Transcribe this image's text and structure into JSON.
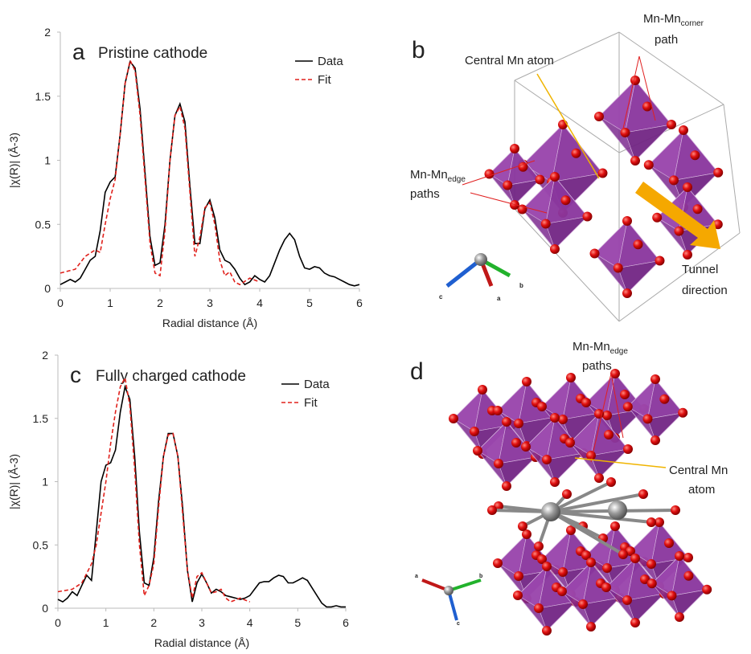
{
  "chart_data": [
    {
      "type": "line",
      "panel_label": "a",
      "title": "Pristine cathode",
      "xlabel": "Radial distance (Å)",
      "ylabel": "|χ(R)| (Å-3)",
      "xlim": [
        0,
        6
      ],
      "ylim": [
        0,
        2
      ],
      "xticks": [
        0,
        1,
        2,
        3,
        4,
        5,
        6
      ],
      "yticks": [
        0,
        0.5,
        1,
        1.5,
        2
      ],
      "grid": false,
      "legend": "upper right",
      "series": [
        {
          "name": "Data",
          "color": "#000000",
          "dash": false,
          "x": [
            0,
            0.1,
            0.2,
            0.3,
            0.4,
            0.5,
            0.6,
            0.7,
            0.8,
            0.9,
            1.0,
            1.1,
            1.2,
            1.3,
            1.4,
            1.5,
            1.6,
            1.7,
            1.8,
            1.9,
            2.0,
            2.1,
            2.2,
            2.3,
            2.4,
            2.5,
            2.6,
            2.7,
            2.8,
            2.9,
            3.0,
            3.1,
            3.2,
            3.3,
            3.4,
            3.5,
            3.6,
            3.7,
            3.8,
            3.9,
            4.0,
            4.1,
            4.2,
            4.3,
            4.4,
            4.5,
            4.6,
            4.7,
            4.8,
            4.9,
            5.0,
            5.1,
            5.2,
            5.3,
            5.4,
            5.5,
            5.6,
            5.7,
            5.8,
            5.9,
            6.0
          ],
          "values": [
            0.03,
            0.05,
            0.07,
            0.05,
            0.08,
            0.15,
            0.22,
            0.25,
            0.45,
            0.75,
            0.83,
            0.87,
            1.2,
            1.6,
            1.77,
            1.72,
            1.4,
            0.9,
            0.4,
            0.18,
            0.2,
            0.5,
            1.0,
            1.35,
            1.44,
            1.3,
            0.8,
            0.35,
            0.35,
            0.62,
            0.69,
            0.55,
            0.3,
            0.22,
            0.2,
            0.15,
            0.08,
            0.03,
            0.05,
            0.1,
            0.07,
            0.05,
            0.1,
            0.2,
            0.3,
            0.38,
            0.43,
            0.38,
            0.25,
            0.16,
            0.15,
            0.17,
            0.16,
            0.12,
            0.1,
            0.09,
            0.07,
            0.05,
            0.03,
            0.02,
            0.03
          ]
        },
        {
          "name": "Fit",
          "color": "#e0201b",
          "dash": true,
          "x": [
            0,
            0.3,
            0.5,
            0.7,
            0.8,
            0.9,
            1.0,
            1.1,
            1.2,
            1.3,
            1.4,
            1.5,
            1.6,
            1.7,
            1.8,
            1.9,
            2.0,
            2.1,
            2.2,
            2.3,
            2.4,
            2.5,
            2.6,
            2.7,
            2.8,
            2.9,
            3.0,
            3.1,
            3.2,
            3.3,
            3.4,
            3.5,
            3.6,
            3.8,
            4.0
          ],
          "values": [
            0.12,
            0.15,
            0.25,
            0.3,
            0.28,
            0.5,
            0.7,
            0.85,
            1.2,
            1.6,
            1.78,
            1.7,
            1.35,
            0.85,
            0.35,
            0.12,
            0.1,
            0.45,
            1.0,
            1.35,
            1.42,
            1.25,
            0.75,
            0.25,
            0.4,
            0.63,
            0.67,
            0.5,
            0.22,
            0.1,
            0.13,
            0.05,
            0.03,
            0.08,
            0.05
          ]
        }
      ]
    },
    {
      "type": "line",
      "panel_label": "c",
      "title": "Fully charged cathode",
      "xlabel": "Radial distance (Å)",
      "ylabel": "|χ(R)| (Å-3)",
      "xlim": [
        0,
        6
      ],
      "ylim": [
        0,
        2
      ],
      "xticks": [
        0,
        1,
        2,
        3,
        4,
        5,
        6
      ],
      "yticks": [
        0,
        0.5,
        1,
        1.5,
        2
      ],
      "grid": false,
      "legend": "upper right",
      "series": [
        {
          "name": "Data",
          "color": "#000000",
          "dash": false,
          "x": [
            0,
            0.1,
            0.2,
            0.3,
            0.4,
            0.5,
            0.6,
            0.7,
            0.8,
            0.9,
            1.0,
            1.1,
            1.2,
            1.3,
            1.4,
            1.5,
            1.6,
            1.7,
            1.8,
            1.9,
            2.0,
            2.1,
            2.2,
            2.3,
            2.4,
            2.5,
            2.6,
            2.7,
            2.8,
            2.9,
            3.0,
            3.1,
            3.2,
            3.3,
            3.4,
            3.5,
            3.6,
            3.7,
            3.8,
            3.9,
            4.0,
            4.1,
            4.2,
            4.3,
            4.4,
            4.5,
            4.6,
            4.7,
            4.8,
            4.9,
            5.0,
            5.1,
            5.2,
            5.3,
            5.4,
            5.5,
            5.6,
            5.7,
            5.8,
            5.9,
            6.0
          ],
          "values": [
            0.07,
            0.05,
            0.08,
            0.13,
            0.1,
            0.18,
            0.26,
            0.22,
            0.6,
            1.0,
            1.13,
            1.15,
            1.25,
            1.55,
            1.75,
            1.65,
            1.2,
            0.6,
            0.2,
            0.18,
            0.4,
            0.85,
            1.2,
            1.38,
            1.38,
            1.2,
            0.8,
            0.3,
            0.05,
            0.2,
            0.27,
            0.2,
            0.12,
            0.15,
            0.13,
            0.1,
            0.09,
            0.08,
            0.07,
            0.08,
            0.1,
            0.15,
            0.2,
            0.21,
            0.21,
            0.24,
            0.26,
            0.25,
            0.2,
            0.2,
            0.22,
            0.24,
            0.22,
            0.16,
            0.1,
            0.04,
            0.01,
            0.01,
            0.02,
            0.01,
            0.01
          ]
        },
        {
          "name": "Fit",
          "color": "#e0201b",
          "dash": true,
          "x": [
            0,
            0.3,
            0.5,
            0.7,
            0.8,
            0.9,
            1.0,
            1.1,
            1.2,
            1.3,
            1.4,
            1.5,
            1.6,
            1.7,
            1.8,
            1.9,
            2.0,
            2.1,
            2.2,
            2.3,
            2.4,
            2.5,
            2.6,
            2.7,
            2.8,
            2.9,
            3.0,
            3.1,
            3.2,
            3.3,
            3.4,
            3.5,
            3.6,
            3.8,
            4.0
          ],
          "values": [
            0.13,
            0.15,
            0.2,
            0.35,
            0.5,
            0.75,
            1.0,
            1.3,
            1.55,
            1.75,
            1.82,
            1.6,
            1.1,
            0.5,
            0.1,
            0.18,
            0.35,
            0.8,
            1.2,
            1.37,
            1.38,
            1.2,
            0.75,
            0.3,
            0.08,
            0.25,
            0.28,
            0.2,
            0.12,
            0.13,
            0.15,
            0.08,
            0.05,
            0.08,
            0.05
          ]
        }
      ]
    }
  ],
  "panels": {
    "b": {
      "label": "b",
      "central": "Central Mn atom",
      "corner": {
        "main": "Mn-Mn",
        "sub": "corner",
        "rest": "path"
      },
      "edge": {
        "main": "Mn-Mn",
        "sub": "edge",
        "rest": "paths"
      },
      "tunnel": [
        "Tunnel",
        "direction"
      ],
      "axes": [
        "a",
        "b",
        "c"
      ]
    },
    "d": {
      "label": "d",
      "edge": {
        "main": "Mn-Mn",
        "sub": "edge",
        "rest": "paths"
      },
      "central": [
        "Central Mn",
        "atom"
      ],
      "axes": [
        "a",
        "b",
        "c"
      ]
    }
  }
}
